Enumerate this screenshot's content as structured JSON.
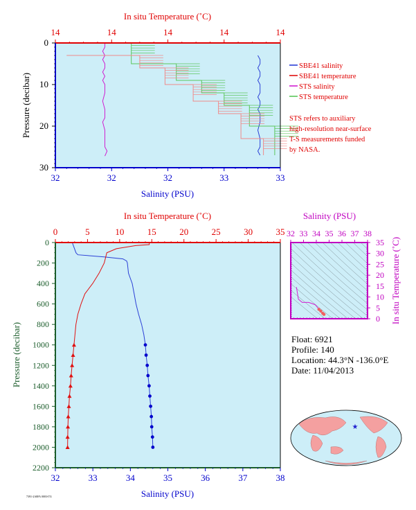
{
  "colors": {
    "plot_bg": "#cdeef8",
    "temp_axis": "#e00000",
    "sal_axis": "#0000cc",
    "pressure_axis": "#1a5c2a",
    "sbe_salinity": "#2b3fd6",
    "sbe_temperature": "#e01010",
    "sts_salinity": "#d020d0",
    "sts_temperature": "#5cc65c",
    "sts_temperature_alt": "#f08a8a",
    "ts_axis": "#c000c0"
  },
  "legend": {
    "entries": [
      {
        "label": "SBE41 salinity",
        "color": "#2b3fd6"
      },
      {
        "label": "SBE41 temperature",
        "color": "#e01010"
      },
      {
        "label": "STS salinity",
        "color": "#d020d0"
      },
      {
        "label": "STS temperature",
        "color": "#5cc65c"
      }
    ],
    "note_lines": [
      "STS refers to auxiliary",
      "high-resolution near-surface",
      "T-S measurements funded",
      "by NASA."
    ]
  },
  "float_info": {
    "float": "Float: 6921",
    "profile": "Profile: 140",
    "location": "Location: 44.3°N -136.0°E",
    "date": "Date: 11/04/2013"
  },
  "footer_code": "7391-2A8FA 0003-I74",
  "chart_data": [
    {
      "type": "line",
      "name": "top_near_surface",
      "top_axis_label": "In situ Temperature (˚C)",
      "bottom_axis_label": "Salinity (PSU)",
      "left_axis_label": "Pressure (decibar)",
      "top_ticks": [
        "14",
        "14",
        "14",
        "14",
        "14"
      ],
      "bottom_ticks": [
        "32",
        "32",
        "32",
        "33",
        "33"
      ],
      "left_ticks": [
        "0",
        "10",
        "20",
        "30"
      ],
      "x_sal_range": [
        32,
        33
      ],
      "x_temp_range": [
        13.8,
        14.6
      ],
      "y_range": [
        0,
        30
      ],
      "series": [
        {
          "name": "STS salinity",
          "x": [
            32.22,
            32.22,
            32.21,
            32.22,
            32.21,
            32.22,
            32.22,
            32.21,
            32.22,
            32.21,
            32.22,
            32.22,
            32.21,
            32.22,
            32.22,
            32.22,
            32.21,
            32.22,
            32.22,
            32.22,
            32.23,
            32.22
          ],
          "y": [
            0,
            1,
            2,
            3,
            4,
            5,
            6,
            7,
            8,
            9,
            10,
            12,
            14,
            16,
            17,
            18,
            19,
            21,
            23,
            25,
            26,
            27.2
          ]
        },
        {
          "name": "SBE41 salinity",
          "x": [
            32.9,
            32.91,
            32.91,
            32.9,
            32.91,
            32.91,
            32.9,
            32.91,
            32.91,
            32.9,
            32.91,
            32.91,
            32.9,
            32.91,
            32.91,
            32.9,
            32.91,
            32.91,
            32.9,
            32.91
          ],
          "y": [
            3,
            4,
            5,
            6,
            7,
            8,
            9,
            10,
            12,
            13,
            14,
            15,
            16,
            17,
            19,
            21,
            23,
            25,
            26,
            27
          ]
        },
        {
          "name": "STS temperature",
          "x": [
            13.9,
            14.07,
            14.07,
            14.23,
            14.23,
            14.32,
            14.32,
            14.4,
            14.4,
            14.49,
            14.49,
            14.58,
            14.58
          ],
          "y": [
            0,
            0,
            5,
            5,
            9,
            9,
            12,
            12,
            15,
            15,
            20,
            20,
            27
          ]
        },
        {
          "name": "SBE41 temperature",
          "x": [
            13.84,
            14.1,
            14.1,
            14.19,
            14.19,
            14.29,
            14.29,
            14.38,
            14.38,
            14.46,
            14.46,
            14.54,
            14.54
          ],
          "y": [
            3,
            3,
            6,
            6,
            10,
            10,
            14,
            14,
            17,
            17,
            23,
            23,
            27
          ]
        }
      ]
    },
    {
      "type": "line",
      "name": "bottom_full_profile",
      "top_axis_label": "In situ Temperature (˚C)",
      "bottom_axis_label": "Salinity (PSU)",
      "left_axis_label": "Pressure (decibar)",
      "top_ticks": [
        "0",
        "5",
        "10",
        "15",
        "20",
        "25",
        "30",
        "35"
      ],
      "bottom_ticks": [
        "32",
        "33",
        "34",
        "35",
        "36",
        "37",
        "38"
      ],
      "left_ticks": [
        "0",
        "200",
        "400",
        "600",
        "800",
        "1000",
        "1200",
        "1400",
        "1600",
        "1800",
        "2000",
        "2200"
      ],
      "x_sal_range": [
        32,
        38
      ],
      "x_temp_range": [
        0,
        35
      ],
      "y_range": [
        0,
        2200
      ],
      "series": [
        {
          "name": "SBE41 salinity",
          "x": [
            32.45,
            32.5,
            32.55,
            32.6,
            33.3,
            33.8,
            33.9,
            33.92,
            33.95,
            34.05,
            34.1,
            34.15,
            34.22,
            34.3,
            34.36,
            34.4,
            34.42,
            34.45,
            34.47,
            34.5,
            34.52,
            34.54,
            34.56,
            34.57,
            34.59,
            34.6,
            34.6
          ],
          "y": [
            0,
            50,
            100,
            120,
            140,
            160,
            180,
            200,
            300,
            400,
            500,
            600,
            700,
            800,
            900,
            1000,
            1100,
            1200,
            1300,
            1400,
            1500,
            1600,
            1700,
            1800,
            1900,
            2000,
            2000
          ]
        },
        {
          "name": "SBE41 temperature",
          "x": [
            14.6,
            14.6,
            12.5,
            9.5,
            8.0,
            7.8,
            7.6,
            6.8,
            5.8,
            4.6,
            4.0,
            3.5,
            3.2,
            3.05,
            2.9,
            2.75,
            2.6,
            2.45,
            2.35,
            2.2,
            2.1,
            2.0,
            1.95,
            1.9
          ],
          "y": [
            0,
            20,
            30,
            60,
            100,
            150,
            200,
            300,
            400,
            500,
            600,
            700,
            800,
            900,
            1000,
            1100,
            1200,
            1300,
            1400,
            1500,
            1600,
            1700,
            1800,
            2000
          ]
        },
        {
          "name": "salinity_markers",
          "x": [
            34.4,
            34.42,
            34.45,
            34.47,
            34.5,
            34.52,
            34.54,
            34.56,
            34.57,
            34.59,
            34.6
          ],
          "y": [
            1000,
            1100,
            1200,
            1300,
            1400,
            1500,
            1600,
            1700,
            1800,
            1900,
            2000
          ]
        },
        {
          "name": "temperature_markers",
          "x": [
            2.9,
            2.75,
            2.6,
            2.45,
            2.35,
            2.2,
            2.1,
            2.0,
            1.95,
            1.9,
            1.9
          ],
          "y": [
            1000,
            1100,
            1200,
            1300,
            1400,
            1500,
            1600,
            1700,
            1800,
            1900,
            2000
          ]
        }
      ]
    },
    {
      "type": "scatter",
      "name": "ts_diagram",
      "top_axis_label": "Salinity (PSU)",
      "right_axis_label": "In situ Temperature (˚C)",
      "top_ticks": [
        "32",
        "33",
        "34",
        "35",
        "36",
        "37",
        "38"
      ],
      "right_ticks": [
        "0",
        "5",
        "10",
        "15",
        "20",
        "25",
        "30",
        "35"
      ],
      "x_range": [
        32,
        38
      ],
      "y_range": [
        0,
        35
      ],
      "series": [
        {
          "name": "T-S",
          "x": [
            32.45,
            32.5,
            32.6,
            32.9,
            33.4,
            33.9,
            34.05,
            34.2,
            34.35,
            34.5,
            34.6
          ],
          "y": [
            14.5,
            12.5,
            9,
            7.5,
            7.5,
            6.5,
            5.5,
            4.3,
            3.5,
            2.5,
            2
          ]
        }
      ]
    }
  ]
}
